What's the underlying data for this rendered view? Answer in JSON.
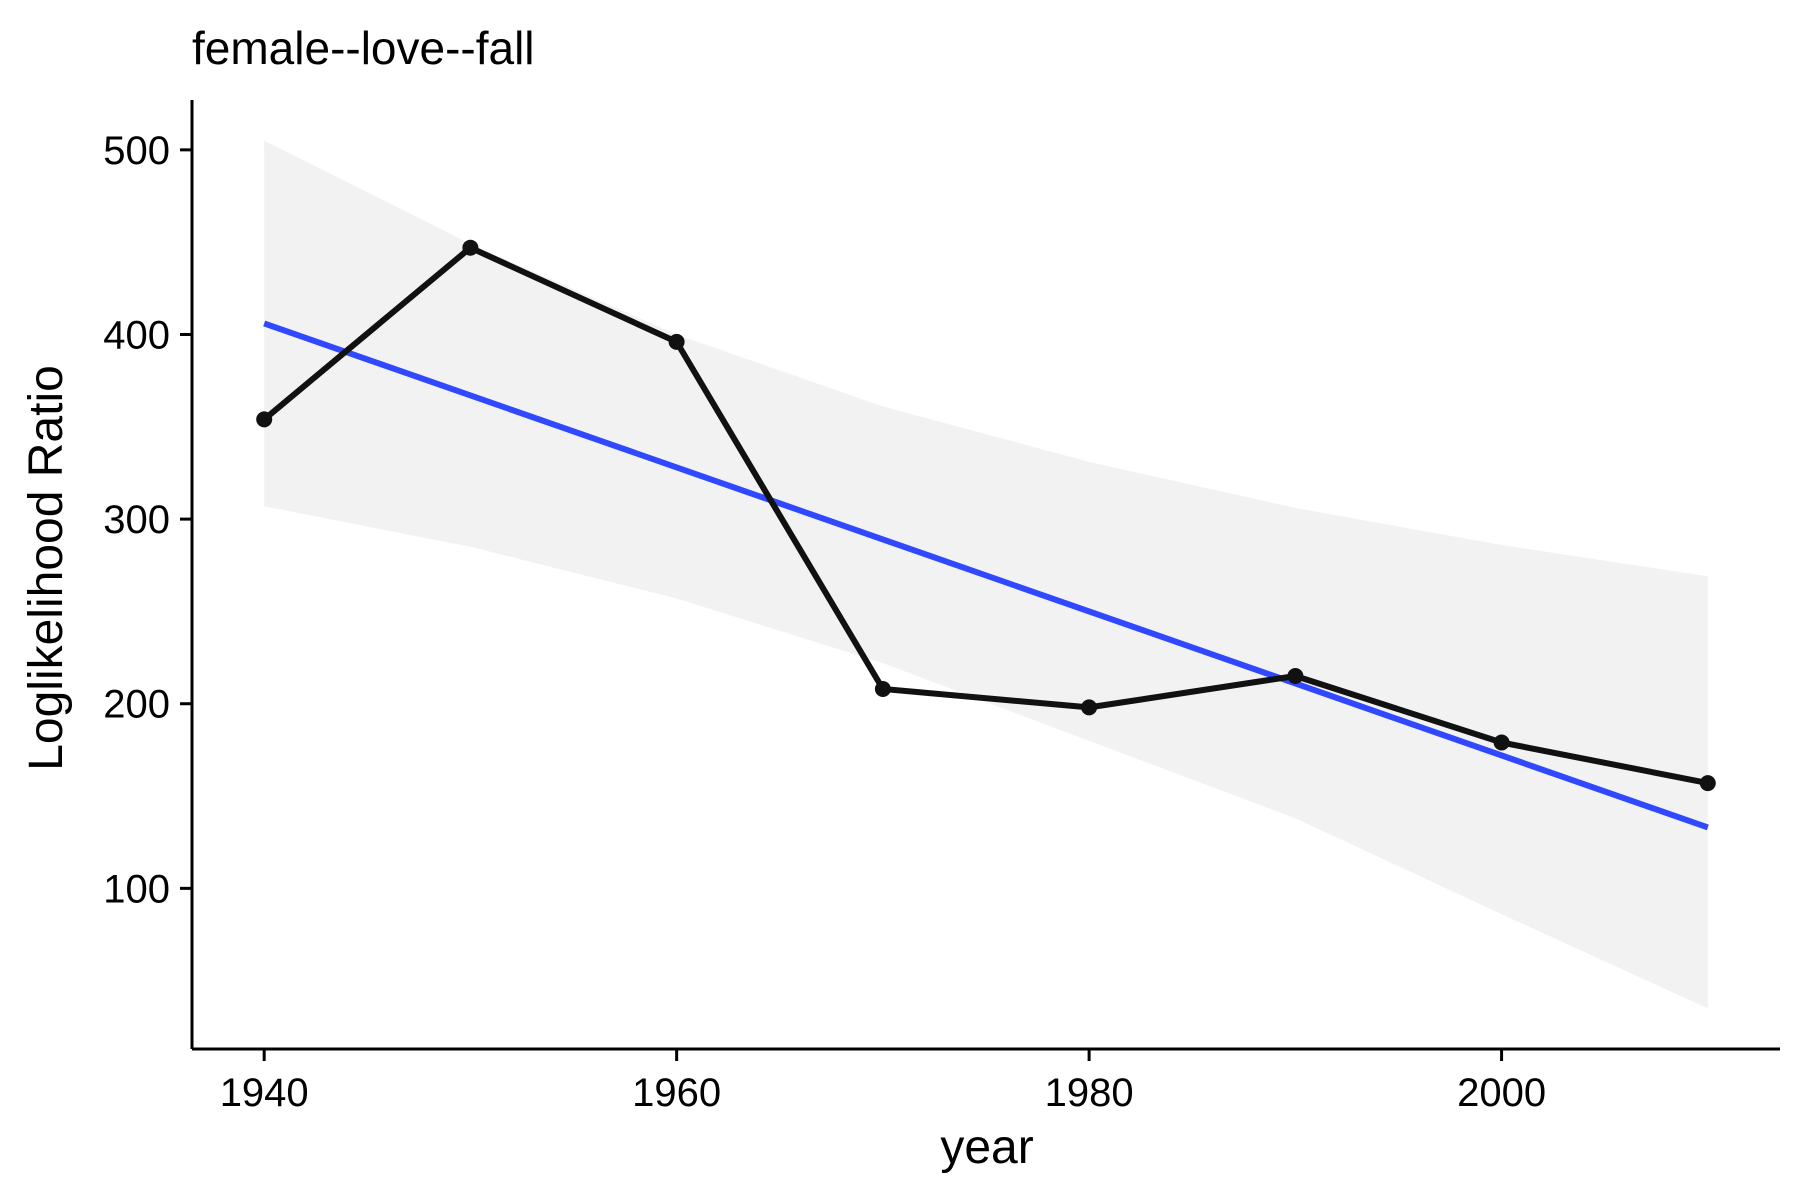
{
  "chart_data": {
    "type": "line",
    "title": "female--love--fall",
    "xlabel": "year",
    "ylabel": "Loglikelihood Ratio",
    "xlim": [
      1936.5,
      2013.5
    ],
    "ylim": [
      13,
      527
    ],
    "x_ticks": [
      1940,
      1960,
      1980,
      2000
    ],
    "y_ticks": [
      100,
      200,
      300,
      400,
      500
    ],
    "grid": false,
    "legend": "none",
    "series": [
      {
        "x": [
          1940,
          1950,
          1960,
          1970,
          1980,
          1990,
          2000,
          2010
        ],
        "values": [
          354,
          447,
          396,
          208,
          198,
          215,
          179,
          157
        ],
        "color": "#111111",
        "markers": true
      }
    ],
    "trend": {
      "method": "linear",
      "x": [
        1940,
        2010
      ],
      "values": [
        406,
        133
      ],
      "color": "#3048ff",
      "band": {
        "x": [
          1940,
          1950,
          1960,
          1970,
          1980,
          1990,
          2000,
          2010
        ],
        "upper": [
          505,
          449,
          400,
          361,
          331,
          306,
          286,
          269
        ],
        "lower": [
          307,
          285,
          257,
          222,
          180,
          138,
          86,
          35
        ],
        "color": "#f2f2f2"
      }
    }
  }
}
